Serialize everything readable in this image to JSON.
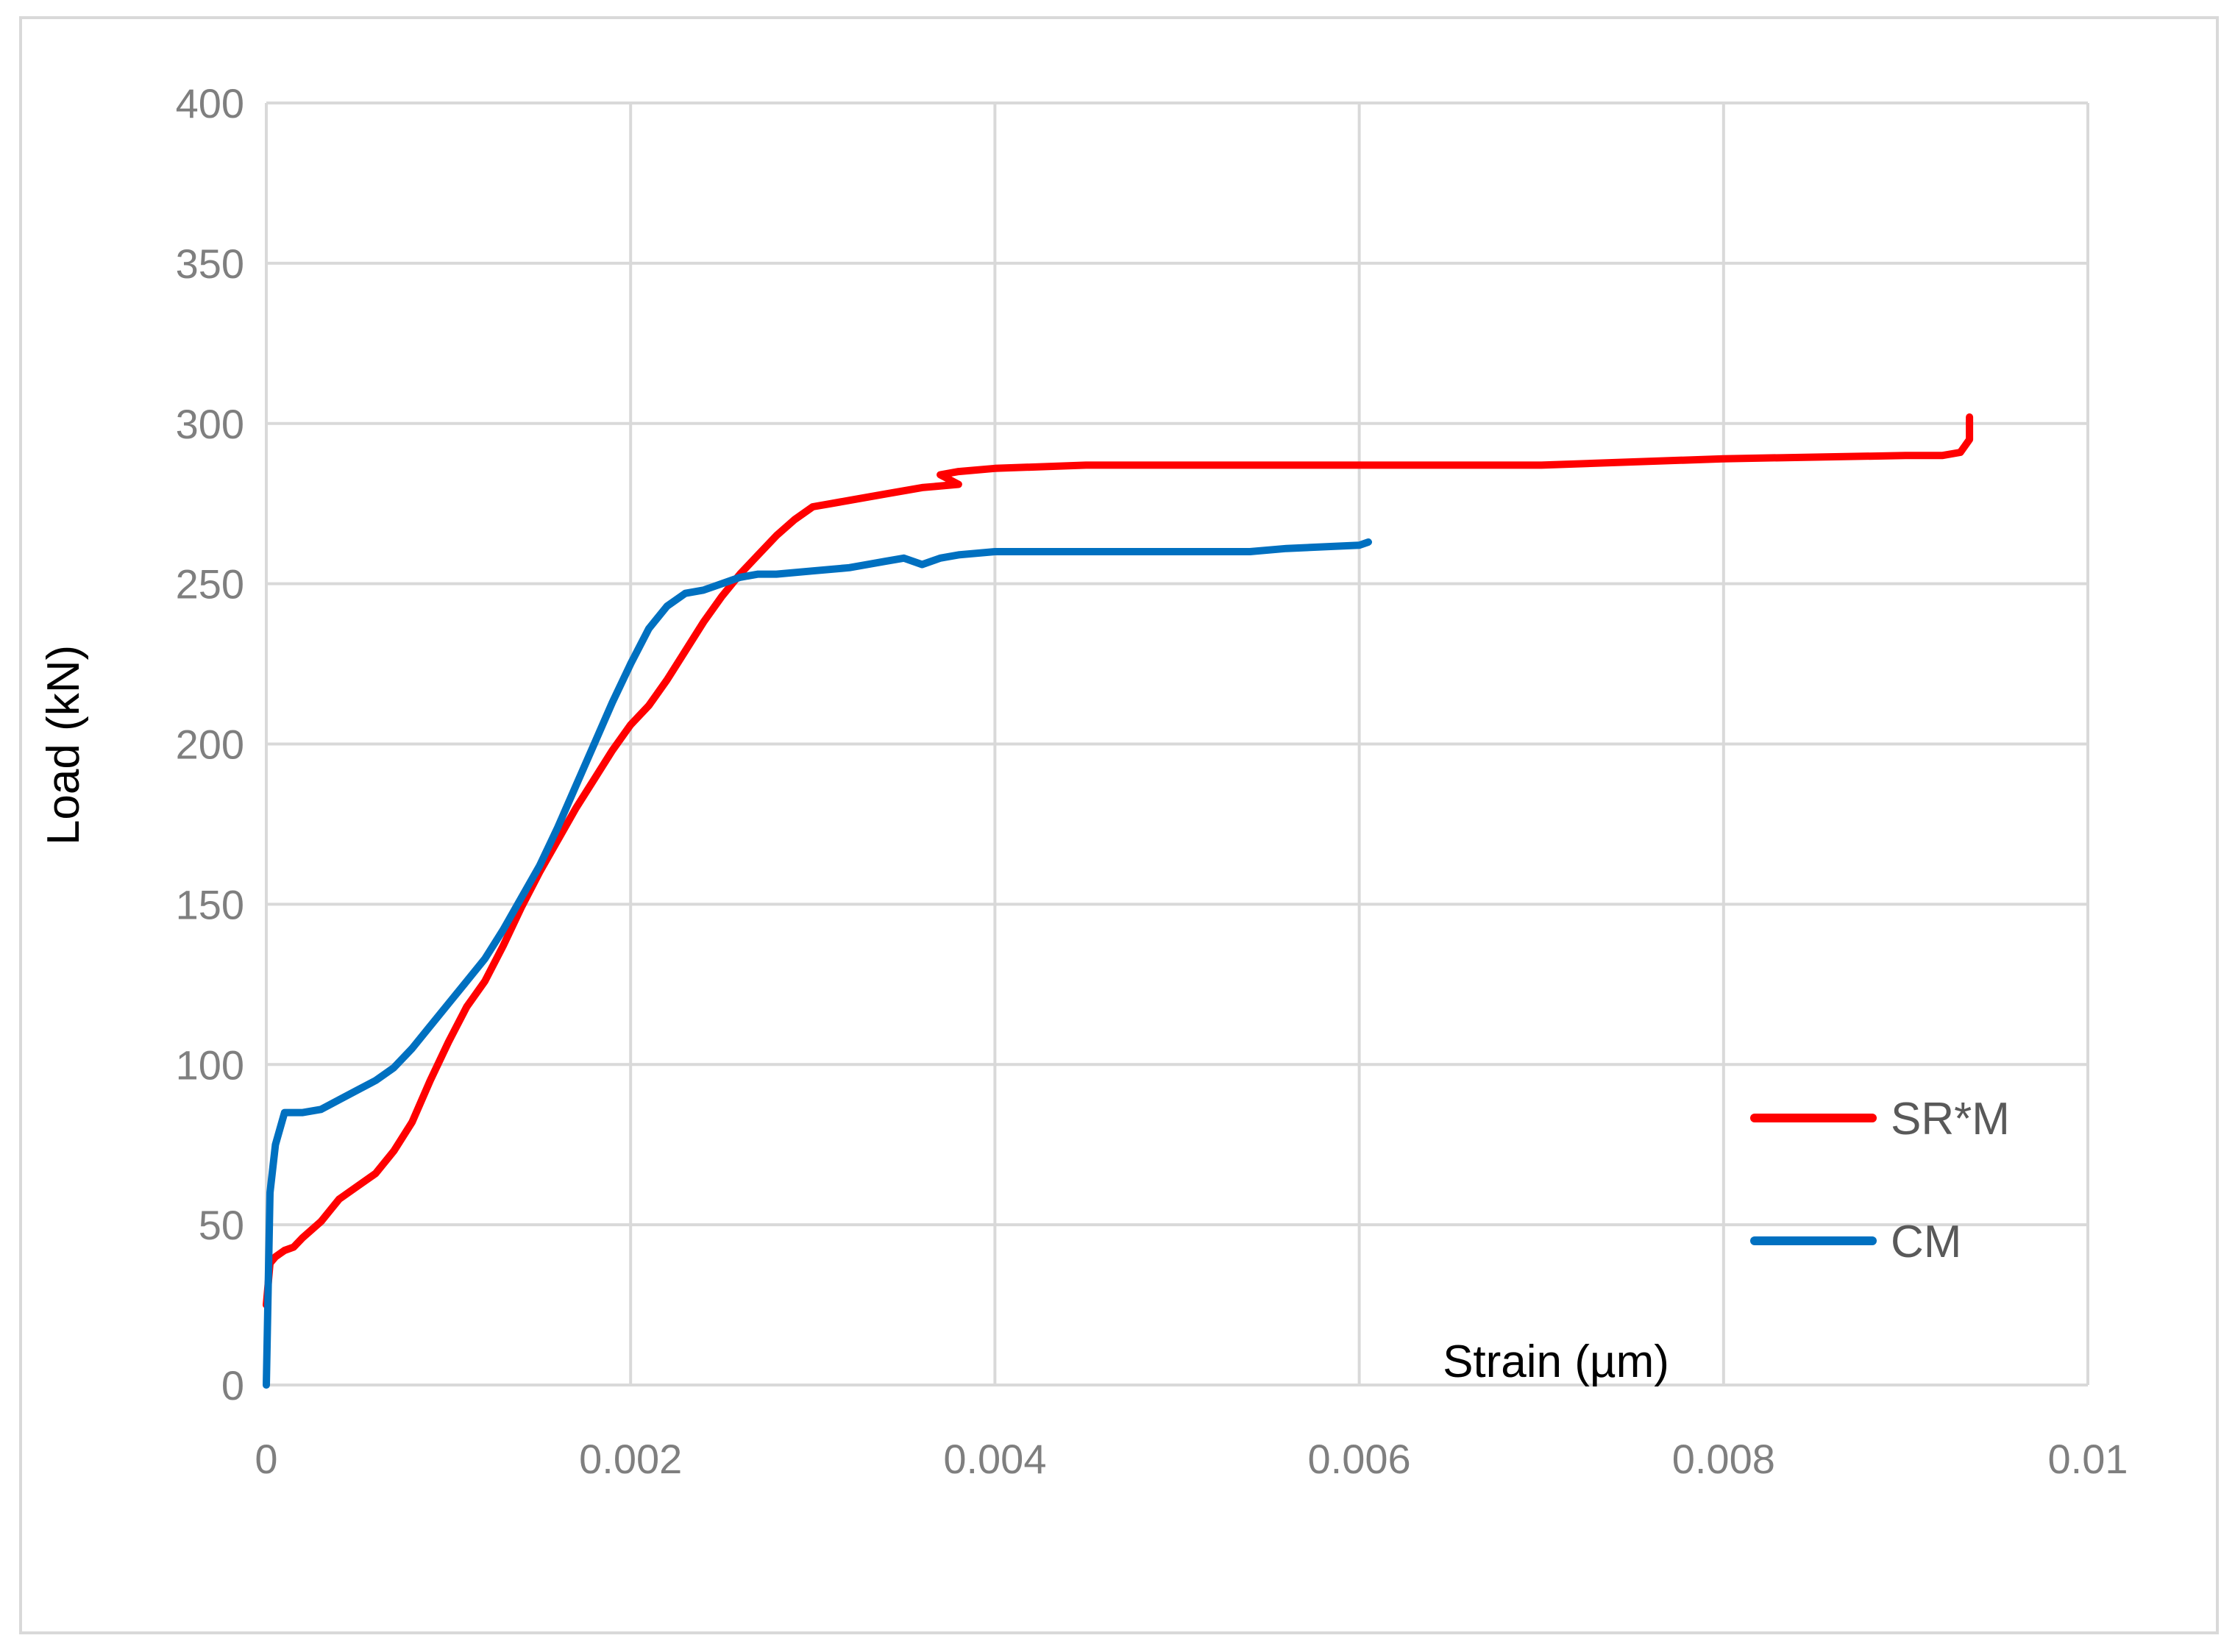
{
  "chart_data": {
    "type": "line",
    "xlabel": "Strain (µm)",
    "ylabel": "Load (kN)",
    "xlim": [
      0,
      0.01
    ],
    "ylim": [
      0,
      400
    ],
    "x_ticks": [
      "0",
      "0.002",
      "0.004",
      "0.006",
      "0.008",
      "0.01"
    ],
    "y_ticks": [
      "0",
      "50",
      "100",
      "150",
      "200",
      "250",
      "300",
      "350",
      "400"
    ],
    "grid": true,
    "legend_position": "right",
    "series": [
      {
        "name": "SR*M",
        "color": "#ff0000",
        "x": [
          0,
          2e-05,
          5e-05,
          0.0001,
          0.00015,
          0.0002,
          0.0003,
          0.0004,
          0.0005,
          0.0006,
          0.0007,
          0.0008,
          0.0009,
          0.001,
          0.0011,
          0.0012,
          0.0013,
          0.0014,
          0.0015,
          0.0016,
          0.0017,
          0.0018,
          0.0019,
          0.002,
          0.0021,
          0.0022,
          0.0023,
          0.0024,
          0.0025,
          0.0026,
          0.0027,
          0.0028,
          0.0029,
          0.003,
          0.0031,
          0.0032,
          0.0034,
          0.0036,
          0.0038,
          0.0037,
          0.0038,
          0.004,
          0.0045,
          0.005,
          0.006,
          0.007,
          0.008,
          0.009,
          0.0092,
          0.0093,
          0.00935,
          0.00935
        ],
        "y": [
          25,
          38,
          40,
          42,
          43,
          46,
          51,
          58,
          62,
          66,
          73,
          82,
          95,
          107,
          118,
          126,
          137,
          149,
          160,
          170,
          180,
          189,
          198,
          206,
          212,
          220,
          229,
          238,
          246,
          253,
          259,
          265,
          270,
          274,
          275,
          276,
          278,
          280,
          281,
          284,
          285,
          286,
          287,
          287,
          287,
          287,
          289,
          290,
          290,
          291,
          295,
          302
        ]
      },
      {
        "name": "CM",
        "color": "#0070c0",
        "x": [
          0,
          2e-05,
          5e-05,
          0.0001,
          0.0002,
          0.0003,
          0.0004,
          0.0005,
          0.0006,
          0.0007,
          0.0008,
          0.0009,
          0.001,
          0.0011,
          0.0012,
          0.0013,
          0.0014,
          0.0015,
          0.0016,
          0.0017,
          0.0018,
          0.0019,
          0.002,
          0.0021,
          0.0022,
          0.0023,
          0.0024,
          0.0025,
          0.0026,
          0.0027,
          0.0028,
          0.003,
          0.0032,
          0.0034,
          0.0035,
          0.0036,
          0.0037,
          0.0038,
          0.004,
          0.005,
          0.0054,
          0.0056,
          0.006,
          0.00605
        ],
        "y": [
          0,
          60,
          75,
          85,
          85,
          86,
          89,
          92,
          95,
          99,
          105,
          112,
          119,
          126,
          133,
          142,
          152,
          162,
          174,
          187,
          200,
          213,
          225,
          236,
          243,
          247,
          248,
          250,
          252,
          253,
          253,
          254,
          255,
          257,
          258,
          256,
          258,
          259,
          260,
          260,
          260,
          261,
          262,
          263
        ]
      }
    ]
  }
}
